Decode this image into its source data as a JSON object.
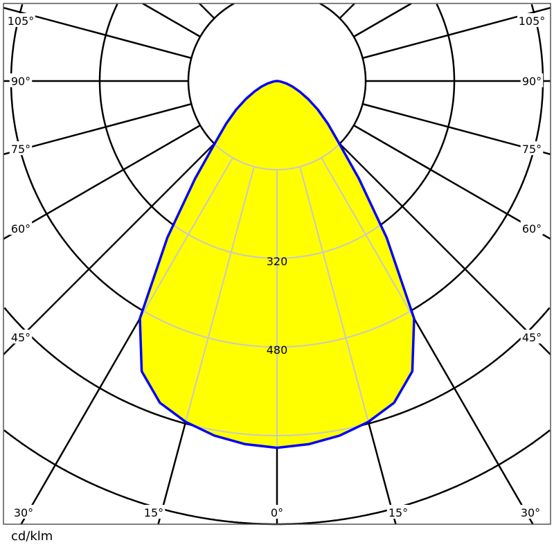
{
  "chart_data": {
    "type": "polar",
    "unit_label": "cd/klm",
    "radial_ticks": [
      160,
      320,
      480,
      640,
      800
    ],
    "radial_tick_labels_shown": [
      "320",
      "480"
    ],
    "angle_step_deg": 15,
    "angle_labels_left": [
      "105°",
      "90°",
      "75°",
      "60°",
      "45°",
      "30°",
      "15°"
    ],
    "angle_labels_bottom": [
      "30°",
      "15°",
      "0°",
      "15°",
      "30°"
    ],
    "angle_labels_right": [
      "105°",
      "90°",
      "75°",
      "60°",
      "45°"
    ],
    "grid": true,
    "symmetric": true,
    "series": [
      {
        "angles_deg": [
          0,
          5,
          10,
          15,
          20,
          25,
          30,
          35,
          40,
          45,
          50,
          55,
          60,
          65,
          70,
          75,
          80,
          85,
          90
        ],
        "values": [
          662,
          658,
          650,
          637,
          618,
          578,
          495,
          345,
          230,
          158,
          120,
          90,
          65,
          45,
          30,
          18,
          8,
          3,
          0
        ]
      }
    ],
    "colors": {
      "fill": "#ffff00",
      "line": "#0000ff",
      "grid": "#000000",
      "grid_inside": "#c8c8c8"
    }
  }
}
